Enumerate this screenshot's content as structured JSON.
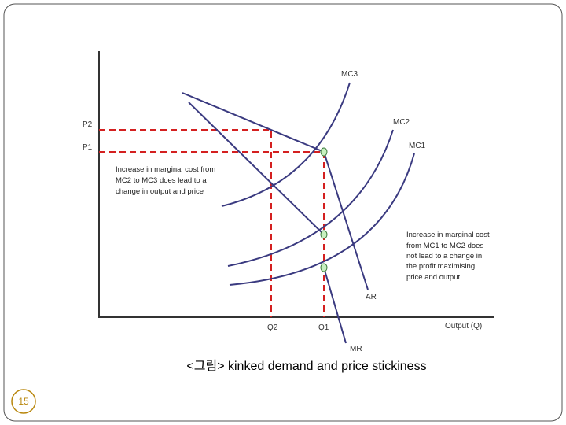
{
  "labels": {
    "mc3": "MC3",
    "mc2": "MC2",
    "mc1": "MC1",
    "ar": "AR",
    "mr": "MR",
    "p2": "P2",
    "p1": "P1",
    "q2": "Q2",
    "q1": "Q1",
    "x_axis": "Output (Q)"
  },
  "annotations": [
    [
      "Increase in marginal cost from",
      "MC2 to MC3 does lead to a",
      "change in output and price"
    ],
    [
      "Increase in marginal cost",
      "from MC1 to MC2 does",
      "not lead to a change in",
      "the profit maximising",
      "price and output"
    ]
  ],
  "caption": "<그림> kinked demand and price stickiness",
  "page_number": "15"
}
